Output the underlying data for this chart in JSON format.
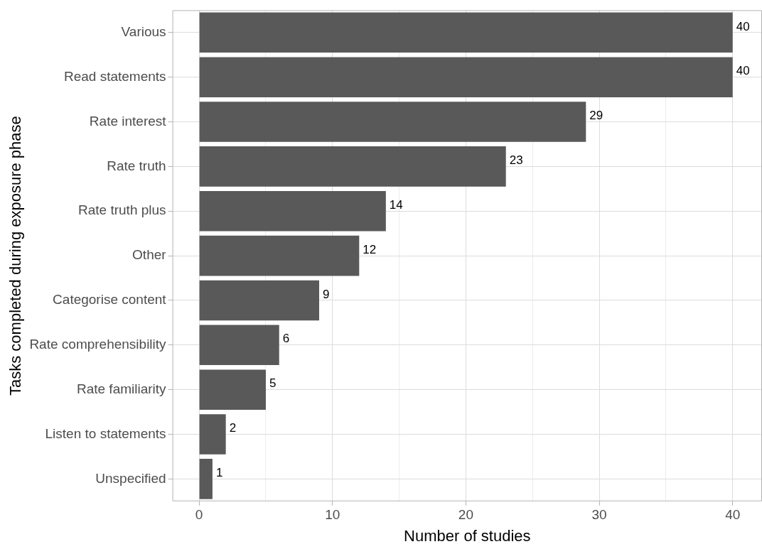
{
  "chart_data": {
    "type": "bar",
    "orientation": "horizontal",
    "xlabel": "Number of studies",
    "ylabel": "Tasks completed during exposure phase",
    "categories": [
      "Various",
      "Read statements",
      "Rate interest",
      "Rate truth",
      "Rate truth plus",
      "Other",
      "Categorise content",
      "Rate comprehensibility",
      "Rate familiarity",
      "Listen to statements",
      "Unspecified"
    ],
    "values": [
      40,
      40,
      29,
      23,
      14,
      12,
      9,
      6,
      5,
      2,
      1
    ],
    "color": "#595959",
    "xlim": [
      -2,
      42.2
    ],
    "xticks": [
      0,
      {
        "value": 5,
        "label": null
      },
      10,
      {
        "value": 15,
        "label": null
      },
      20,
      {
        "value": 25,
        "label": null
      },
      30,
      {
        "value": 35,
        "label": null
      },
      40
    ],
    "grid": true,
    "data_labels": true
  }
}
